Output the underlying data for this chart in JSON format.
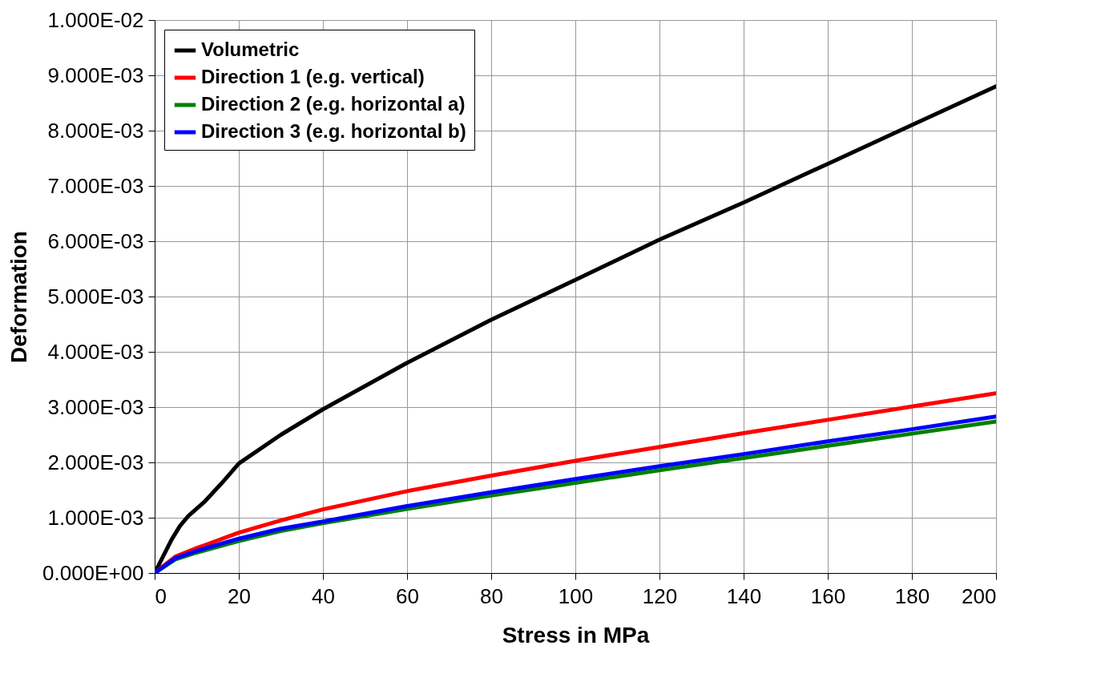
{
  "chart_data": {
    "type": "line",
    "xlabel": "Stress in MPa",
    "ylabel": "Deformation",
    "xlim": [
      0,
      200
    ],
    "xticks": [
      0,
      20,
      40,
      60,
      80,
      100,
      120,
      140,
      160,
      180,
      200
    ],
    "ylim": [
      0,
      0.01
    ],
    "yticks": [
      {
        "value": 0,
        "label": "0.000E+00"
      },
      {
        "value": 0.001,
        "label": "1.000E-03"
      },
      {
        "value": 0.002,
        "label": "2.000E-03"
      },
      {
        "value": 0.003,
        "label": "3.000E-03"
      },
      {
        "value": 0.004,
        "label": "4.000E-03"
      },
      {
        "value": 0.005,
        "label": "5.000E-03"
      },
      {
        "value": 0.006,
        "label": "6.000E-03"
      },
      {
        "value": 0.007,
        "label": "7.000E-03"
      },
      {
        "value": 0.008,
        "label": "8.000E-03"
      },
      {
        "value": 0.009,
        "label": "9.000E-03"
      },
      {
        "value": 0.01,
        "label": "1.000E-02"
      }
    ],
    "grid": true,
    "legend": "top left",
    "marker": "none",
    "line_style": "solid",
    "series": [
      {
        "name": "Volumetric",
        "color": "#000000",
        "x": [
          0,
          2,
          4,
          6,
          8,
          12,
          16,
          20,
          30,
          40,
          60,
          80,
          100,
          120,
          140,
          160,
          180,
          200
        ],
        "values": [
          0,
          0.0003,
          0.0006,
          0.00085,
          0.00103,
          0.0013,
          0.00163,
          0.00198,
          0.0025,
          0.00296,
          0.0038,
          0.00458,
          0.0053,
          0.00603,
          0.0067,
          0.0074,
          0.0081,
          0.0088
        ]
      },
      {
        "name": "Direction 1 (e.g.  vertical)",
        "color": "#ff0000",
        "x": [
          0,
          5,
          10,
          20,
          30,
          40,
          60,
          80,
          100,
          120,
          140,
          160,
          180,
          200
        ],
        "values": [
          0,
          0.0003,
          0.00045,
          0.00073,
          0.00095,
          0.00115,
          0.00148,
          0.00176,
          0.00203,
          0.00228,
          0.00253,
          0.00277,
          0.00301,
          0.00325
        ]
      },
      {
        "name": "Direction 2 (e.g. horizontal a)",
        "color": "#008000",
        "x": [
          0,
          5,
          10,
          20,
          30,
          40,
          60,
          80,
          100,
          120,
          140,
          160,
          180,
          200
        ],
        "values": [
          0,
          0.00025,
          0.00037,
          0.00058,
          0.00076,
          0.0009,
          0.00116,
          0.0014,
          0.00163,
          0.00186,
          0.00208,
          0.0023,
          0.00252,
          0.00274
        ]
      },
      {
        "name": "Direction 3 (e.g. horizontal b)",
        "color": "#0000ff",
        "x": [
          0,
          5,
          10,
          20,
          30,
          40,
          60,
          80,
          100,
          120,
          140,
          160,
          180,
          200
        ],
        "values": [
          0,
          0.00027,
          0.0004,
          0.00062,
          0.0008,
          0.00093,
          0.00121,
          0.00146,
          0.0017,
          0.00193,
          0.00215,
          0.00238,
          0.0026,
          0.00283
        ]
      }
    ]
  }
}
